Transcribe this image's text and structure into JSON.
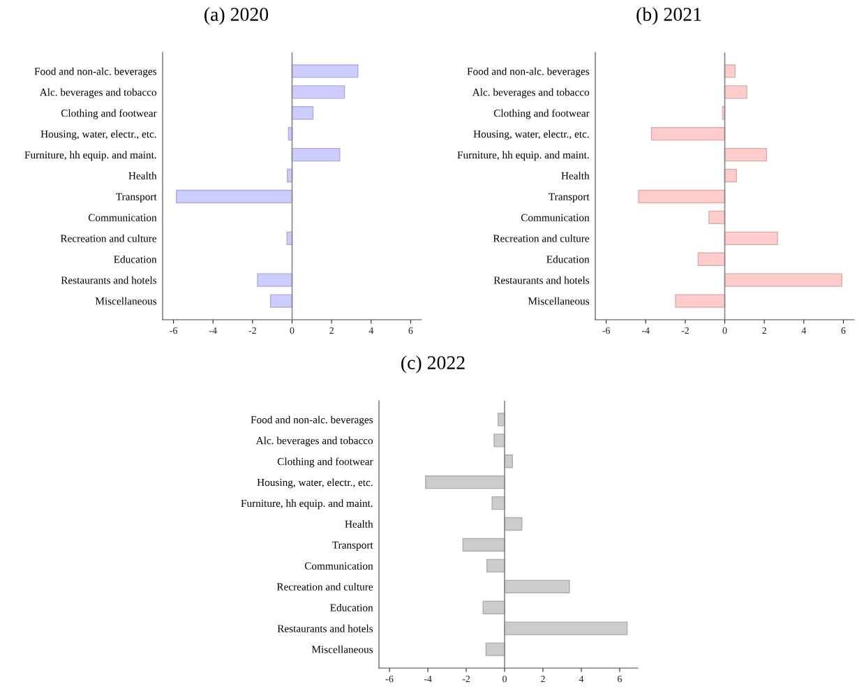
{
  "chart_data": [
    {
      "type": "bar",
      "orientation": "horizontal",
      "title": "(a) 2020",
      "categories": [
        "Food and non-alc. beverages",
        "Alc. beverages and tobacco",
        "Clothing and footwear",
        "Housing, water, electr., etc.",
        "Furniture, hh equip. and maint.",
        "Health",
        "Transport",
        "Communication",
        "Recreation and culture",
        "Education",
        "Restaurants and hotels",
        "Miscellaneous"
      ],
      "values": [
        3.33,
        2.65,
        1.06,
        -0.18,
        2.41,
        -0.24,
        -5.85,
        null,
        -0.26,
        null,
        -1.75,
        -1.09
      ],
      "color": "#ccccff",
      "xlim": [
        -6.55,
        6.55
      ],
      "xticks": [
        -6,
        -4,
        -2,
        0,
        2,
        4,
        6
      ],
      "ref_lines": [
        {
          "axis": "x",
          "value": 0,
          "color": "#888888"
        }
      ],
      "grid": false,
      "legend": false
    },
    {
      "type": "bar",
      "orientation": "horizontal",
      "title": "(b) 2021",
      "categories": [
        "Food and non-alc. beverages",
        "Alc. beverages and tobacco",
        "Clothing and footwear",
        "Housing, water, electr., etc.",
        "Furniture, hh equip. and maint.",
        "Health",
        "Transport",
        "Communication",
        "Recreation and culture",
        "Education",
        "Restaurants and hotels",
        "Miscellaneous"
      ],
      "values": [
        0.52,
        1.11,
        -0.11,
        -3.71,
        2.11,
        0.59,
        -4.36,
        -0.8,
        2.67,
        -1.35,
        5.92,
        -2.49
      ],
      "color": "#ffcccc",
      "xlim": [
        -6.55,
        6.55
      ],
      "xticks": [
        -6,
        -4,
        -2,
        0,
        2,
        4,
        6
      ],
      "ref_lines": [
        {
          "axis": "x",
          "value": 0,
          "color": "#888888"
        }
      ],
      "grid": false,
      "legend": false
    },
    {
      "type": "bar",
      "orientation": "horizontal",
      "title": "(c) 2022",
      "categories": [
        "Food and non-alc. beverages",
        "Alc. beverages and tobacco",
        "Clothing and footwear",
        "Housing, water, electr., etc.",
        "Furniture, hh equip. and maint.",
        "Health",
        "Transport",
        "Communication",
        "Recreation and culture",
        "Education",
        "Restaurants and hotels",
        "Miscellaneous"
      ],
      "values": [
        -0.34,
        -0.55,
        0.41,
        -4.12,
        -0.65,
        0.9,
        -2.17,
        -0.92,
        3.38,
        -1.12,
        6.39,
        -0.97
      ],
      "color": "#cccccc",
      "xlim": [
        -6.55,
        6.95
      ],
      "xticks": [
        -6,
        -4,
        -2,
        0,
        2,
        4,
        6
      ],
      "ref_lines": [
        {
          "axis": "x",
          "value": 0,
          "color": "#888888"
        }
      ],
      "grid": false,
      "legend": false
    }
  ]
}
